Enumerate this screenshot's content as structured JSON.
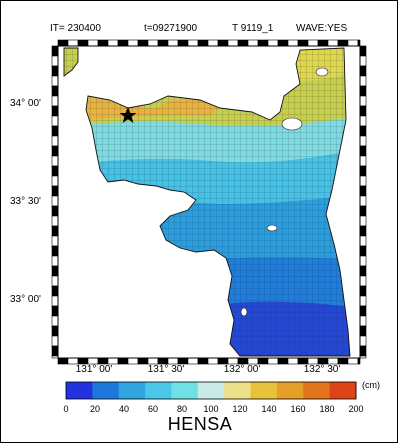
{
  "header": {
    "iteration": "IT=  230400",
    "time": "t=09271900",
    "case": "T 9119_1",
    "wave": "WAVE:YES"
  },
  "lat_labels": [
    "34° 00'",
    "33° 30'",
    "33° 00'"
  ],
  "lon_labels": [
    "131° 00'",
    "131° 30'",
    "132° 00'",
    "132° 30'"
  ],
  "colorbar": {
    "ticks": [
      "0",
      "20",
      "40",
      "60",
      "80",
      "100",
      "120",
      "140",
      "160",
      "180",
      "200"
    ],
    "unit": "(cm)",
    "colors": [
      "#2233dd",
      "#1f77dd",
      "#2fa6e0",
      "#49c7e8",
      "#6fe0e6",
      "#c9eae6",
      "#ece08a",
      "#e8c23a",
      "#e6a02a",
      "#e2741c",
      "#dd4416"
    ]
  },
  "map_title": "HENSA",
  "marker": "star-marker"
}
